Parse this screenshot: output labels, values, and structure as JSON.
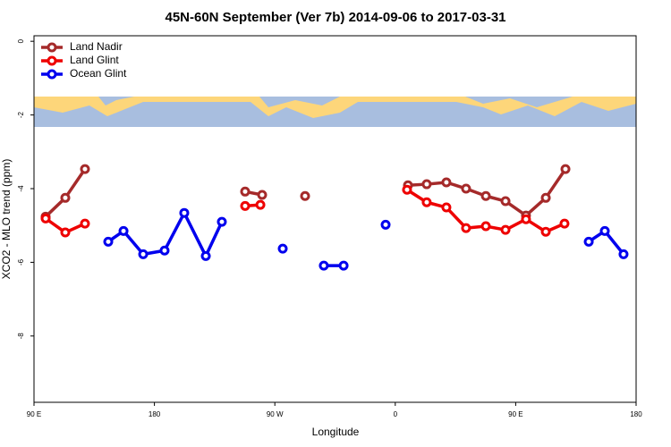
{
  "chart_data": {
    "type": "line",
    "title": "45N-60N September (Ver 7b)   2014-09-06 to 2017-03-31",
    "xlabel": "Longitude",
    "ylabel": "XCO2 - MLO trend (ppm)",
    "xlim": [
      90,
      540
    ],
    "ylim": [
      -9.8,
      0.15
    ],
    "xticks": [
      {
        "value": 90,
        "label": "90 E"
      },
      180,
      {
        "value": 270,
        "label": "90 W"
      },
      {
        "value": 360,
        "label": "0"
      },
      {
        "value": 450,
        "label": "90 E"
      },
      {
        "value": 540,
        "label": "180"
      }
    ],
    "yticks": [
      0,
      -2,
      -4,
      -6,
      -8
    ],
    "legend": "top-left",
    "series": [
      {
        "name": "Land Nadir",
        "color": "#a52a2a",
        "x": [
          98.7,
          113.4,
          128.1,
          null,
          247.8,
          260.5,
          null,
          292.6,
          null,
          369.5,
          383.5,
          398.2,
          412.9,
          427.7,
          442.4,
          457.7,
          472.5,
          487.2
        ],
        "values": [
          -4.76,
          -4.25,
          -3.47,
          null,
          -4.08,
          -4.17,
          null,
          -4.2,
          null,
          -3.91,
          -3.88,
          -3.83,
          -4.0,
          -4.2,
          -4.34,
          -4.73,
          -4.25,
          -3.47
        ]
      },
      {
        "name": "Land Glint",
        "color": "#ee0000",
        "x": [
          98.7,
          113.4,
          128.1,
          null,
          247.8,
          259.2,
          null,
          368.8,
          383.5,
          398.2,
          412.9,
          427.7,
          442.4,
          457.7,
          472.5,
          486.5
        ],
        "values": [
          -4.81,
          -5.19,
          -4.95,
          null,
          -4.47,
          -4.44,
          null,
          -4.03,
          -4.37,
          -4.51,
          -5.07,
          -5.02,
          -5.12,
          -4.83,
          -5.17,
          -4.95
        ]
      },
      {
        "name": "Ocean Glint",
        "color": "#0000ee",
        "x": [
          145.5,
          156.9,
          171.6,
          187.6,
          202.3,
          218.4,
          230.4,
          null,
          275.9,
          null,
          306.6,
          321.4,
          null,
          352.8,
          null,
          504.6,
          516.6,
          530.6
        ],
        "values": [
          -5.44,
          -5.15,
          -5.78,
          -5.68,
          -4.66,
          -5.83,
          -4.9,
          null,
          -5.63,
          null,
          -6.09,
          -6.09,
          null,
          -4.98,
          null,
          -5.44,
          -5.15,
          -5.78
        ]
      }
    ]
  }
}
